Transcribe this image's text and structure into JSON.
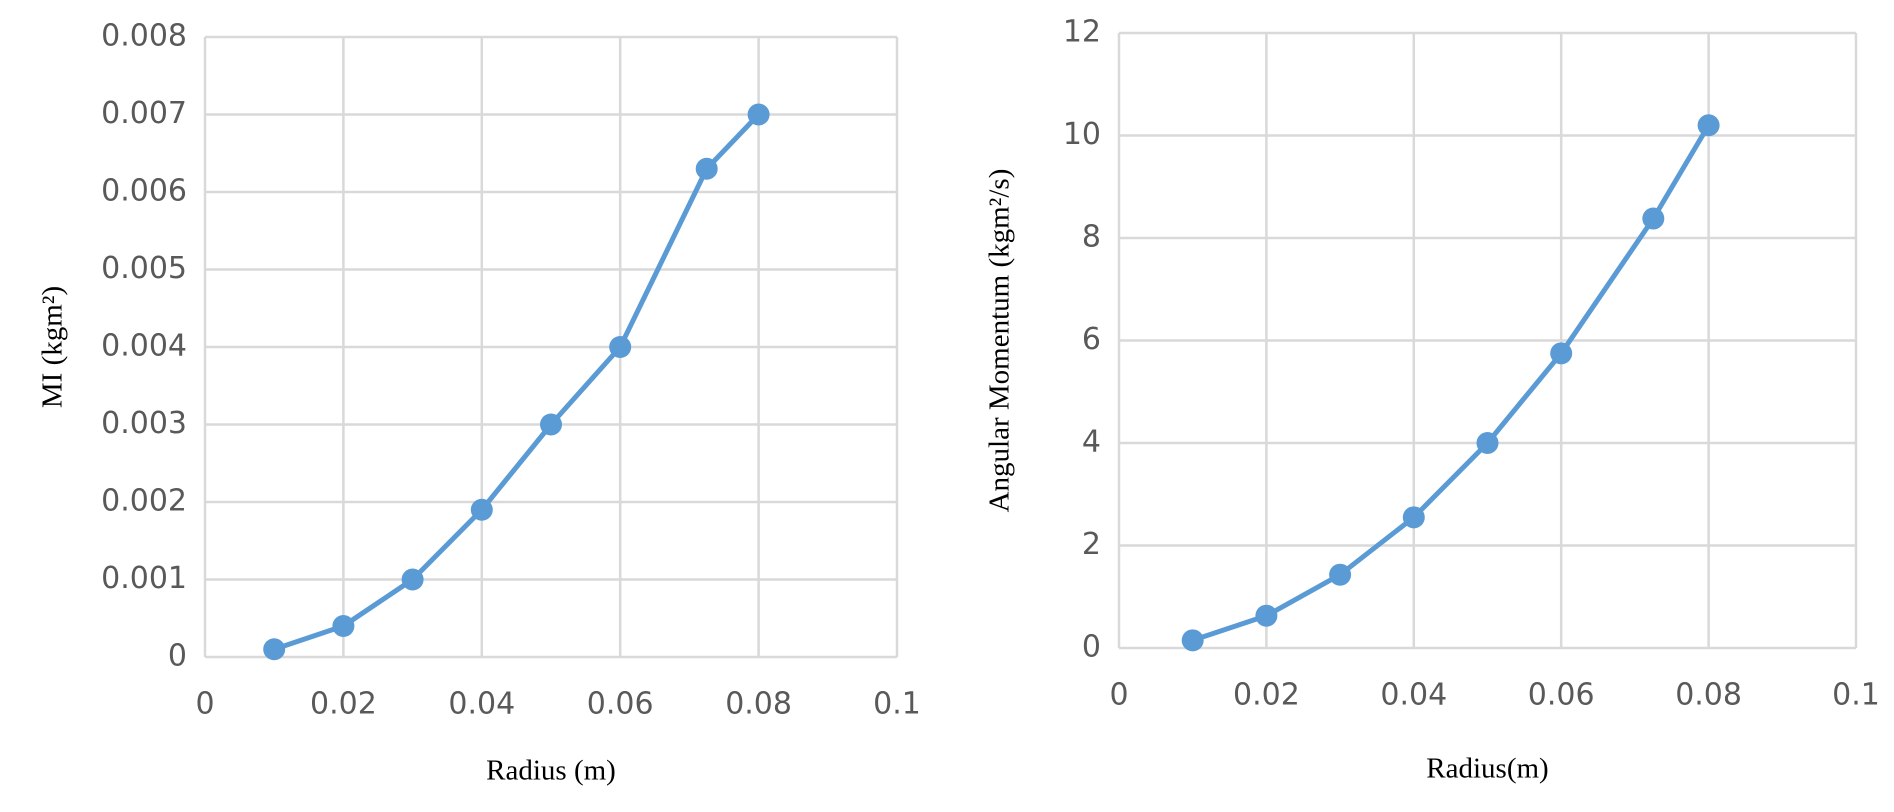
{
  "chart_data": [
    {
      "type": "line",
      "xlabel": "Radius (m)",
      "ylabel": "MI (kgm²)",
      "x": [
        0.01,
        0.02,
        0.03,
        0.04,
        0.05,
        0.06,
        0.0725,
        0.08
      ],
      "values": [
        0.0001,
        0.0004,
        0.001,
        0.0019,
        0.003,
        0.004,
        0.0063,
        0.007
      ],
      "color": "#5b9bd5",
      "xlim": [
        0,
        0.1
      ],
      "xticks": [
        0,
        0.02,
        0.04,
        0.06,
        0.08,
        0.1
      ],
      "ylim": [
        0,
        0.008
      ],
      "yticks": [
        0,
        0.001,
        0.002,
        0.003,
        0.004,
        0.005,
        0.006,
        0.007,
        0.008
      ],
      "grid": true
    },
    {
      "type": "line",
      "xlabel": "Radius(m)",
      "ylabel": "Angular Momentum (kgm²/s)",
      "x": [
        0.01,
        0.02,
        0.03,
        0.04,
        0.05,
        0.06,
        0.0725,
        0.08
      ],
      "values": [
        0.15,
        0.63,
        1.43,
        2.55,
        4.0,
        5.75,
        8.38,
        10.2
      ],
      "color": "#5b9bd5",
      "xlim": [
        0,
        0.1
      ],
      "xticks": [
        0,
        0.02,
        0.04,
        0.06,
        0.08,
        0.1
      ],
      "ylim": [
        0,
        12
      ],
      "yticks": [
        0,
        2,
        4,
        6,
        8,
        10,
        12
      ],
      "grid": true
    }
  ]
}
